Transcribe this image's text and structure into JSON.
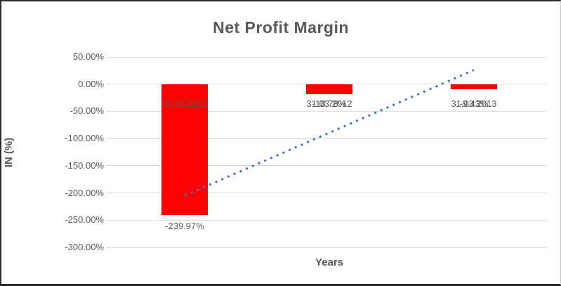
{
  "chart_data": {
    "type": "bar",
    "title": "Net Profit Margin",
    "xlabel": "Years",
    "ylabel": "IN (%)",
    "categories": [
      "31.03.2011",
      "31.03.2012",
      "31.03.2013"
    ],
    "values": [
      -239.97,
      -18.78,
      -9.43
    ],
    "data_labels": [
      "-239.97%",
      "-18.78%",
      "-9.43%"
    ],
    "ylim": [
      -300,
      50
    ],
    "ytick_step": 50,
    "ytick_labels": [
      "50.00%",
      "0.00%",
      "-50.00%",
      "-100.00%",
      "-150.00%",
      "-200.00%",
      "-250.00%",
      "-300.00%"
    ],
    "grid": true,
    "legend": "none",
    "bar_color": "#ff0000",
    "text_color": "#595959",
    "gridline_color": "#d9d9d9",
    "trendline": {
      "type": "linear",
      "style": "dotted",
      "color": "#4472c4",
      "start_value": -204.7,
      "end_value": 25.9
    }
  }
}
